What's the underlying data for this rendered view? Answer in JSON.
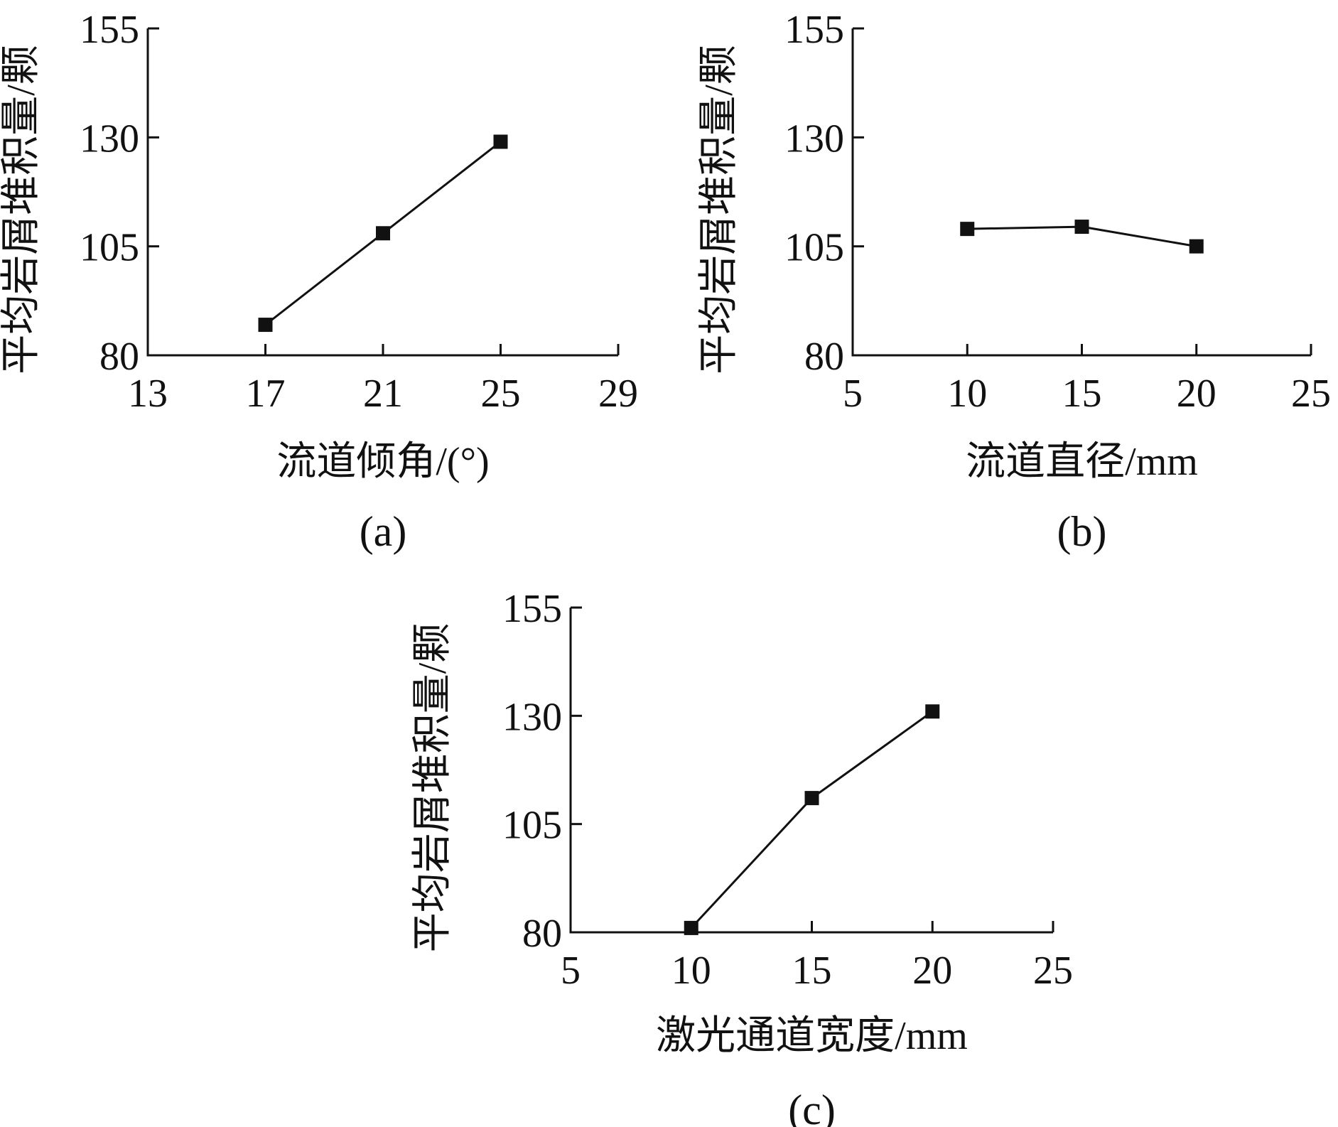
{
  "chart_data": [
    {
      "type": "line",
      "panel_label": "(a)",
      "xlabel": "流道倾角/(°)",
      "ylabel": "平均岩屑堆积量/颗",
      "xlim": [
        13,
        29
      ],
      "ylim": [
        80,
        155
      ],
      "xticks": [
        13,
        17,
        21,
        25,
        29
      ],
      "yticks": [
        80,
        105,
        130,
        155
      ],
      "x": [
        17,
        21,
        25
      ],
      "series": [
        {
          "values": [
            87,
            108,
            129
          ],
          "marker": "square",
          "color": "#111111"
        }
      ],
      "grid": false
    },
    {
      "type": "line",
      "panel_label": "(b)",
      "xlabel": "流道直径/mm",
      "ylabel": "平均岩屑堆积量/颗",
      "xlim": [
        5,
        25
      ],
      "ylim": [
        80,
        155
      ],
      "xticks": [
        5,
        10,
        15,
        20,
        25
      ],
      "yticks": [
        80,
        105,
        130,
        155
      ],
      "x": [
        10,
        15,
        20
      ],
      "series": [
        {
          "values": [
            109,
            109.5,
            105
          ],
          "marker": "square",
          "color": "#111111"
        }
      ],
      "grid": false
    },
    {
      "type": "line",
      "panel_label": "(c)",
      "xlabel": "激光通道宽度/mm",
      "ylabel": "平均岩屑堆积量/颗",
      "xlim": [
        5,
        25
      ],
      "ylim": [
        80,
        155
      ],
      "xticks": [
        5,
        10,
        15,
        20,
        25
      ],
      "yticks": [
        80,
        105,
        130,
        155
      ],
      "x": [
        10,
        15,
        20
      ],
      "series": [
        {
          "values": [
            81,
            111,
            131
          ],
          "marker": "square",
          "color": "#111111"
        }
      ],
      "grid": false
    }
  ]
}
